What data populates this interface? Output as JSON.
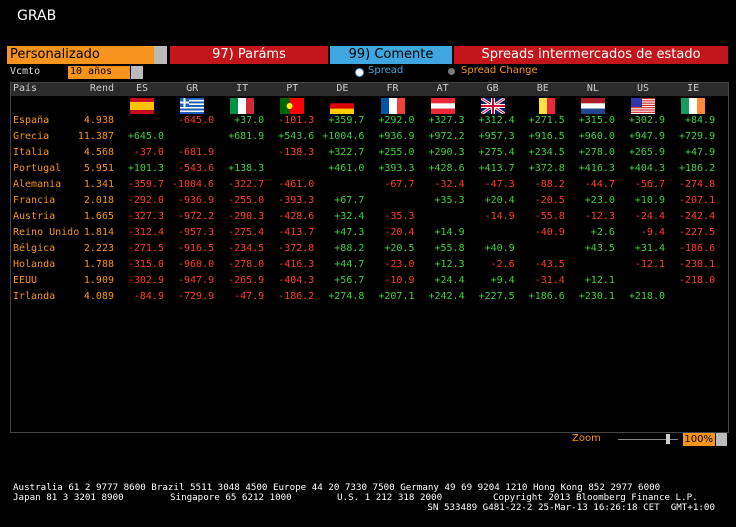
{
  "header": {
    "title": "GRAB"
  },
  "toolbar": {
    "preset": "Personalizado",
    "params": "97) Paráms",
    "comment": "99) Comente",
    "heading": "Spreads intermercados de estado"
  },
  "options": {
    "maturity_label": "Vcmto",
    "maturity": "10 años",
    "spread": "Spread",
    "spread_change": "Spread Change"
  },
  "table": {
    "columns": [
      "País",
      "Rend",
      "ES",
      "GR",
      "IT",
      "PT",
      "DE",
      "FR",
      "AT",
      "GB",
      "BE",
      "NL",
      "US",
      "IE"
    ],
    "rows": [
      [
        "España",
        "4.938",
        null,
        "-645.0",
        "+37.0",
        "-101.3",
        "+359.7",
        "+292.0",
        "+327.3",
        "+312.4",
        "+271.5",
        "+315.0",
        "+302.9",
        "+84.9"
      ],
      [
        "Grecia",
        "11.387",
        "+645.0",
        null,
        "+681.9",
        "+543.6",
        "+1004.6",
        "+936.9",
        "+972.2",
        "+957.3",
        "+916.5",
        "+960.0",
        "+947.9",
        "+729.9"
      ],
      [
        "Italia",
        "4.568",
        "-37.0",
        "-681.9",
        null,
        "-138.3",
        "+322.7",
        "+255.0",
        "+290.3",
        "+275.4",
        "+234.5",
        "+278.0",
        "+265.9",
        "+47.9"
      ],
      [
        "Portugal",
        "5.951",
        "+101.3",
        "-543.6",
        "+138.3",
        null,
        "+461.0",
        "+393.3",
        "+428.6",
        "+413.7",
        "+372.8",
        "+416.3",
        "+404.3",
        "+186.2"
      ],
      [
        "Alemania",
        "1.341",
        "-359.7",
        "-1004.6",
        "-322.7",
        "-461.0",
        null,
        "-67.7",
        "-32.4",
        "-47.3",
        "-88.2",
        "-44.7",
        "-56.7",
        "-274.8"
      ],
      [
        "Francia",
        "2.018",
        "-292.0",
        "-936.9",
        "-255.0",
        "-393.3",
        "+67.7",
        null,
        "+35.3",
        "+20.4",
        "-20.5",
        "+23.0",
        "+10.9",
        "-207.1"
      ],
      [
        "Austria",
        "1.665",
        "-327.3",
        "-972.2",
        "-290.3",
        "-428.6",
        "+32.4",
        "-35.3",
        null,
        "-14.9",
        "-55.8",
        "-12.3",
        "-24.4",
        "-242.4"
      ],
      [
        "Reino Unido",
        "1.814",
        "-312.4",
        "-957.3",
        "-275.4",
        "-413.7",
        "+47.3",
        "-20.4",
        "+14.9",
        null,
        "-40.9",
        "+2.6",
        "-9.4",
        "-227.5"
      ],
      [
        "Bélgica",
        "2.223",
        "-271.5",
        "-916.5",
        "-234.5",
        "-372.8",
        "+88.2",
        "+20.5",
        "+55.8",
        "+40.9",
        null,
        "+43.5",
        "+31.4",
        "-186.6"
      ],
      [
        "Holanda",
        "1.788",
        "-315.0",
        "-960.0",
        "-278.0",
        "-416.3",
        "+44.7",
        "-23.0",
        "+12.3",
        "-2.6",
        "-43.5",
        null,
        "-12.1",
        "-230.1"
      ],
      [
        "EEUU",
        "1.909",
        "-302.9",
        "-947.9",
        "-265.9",
        "-404.3",
        "+56.7",
        "-10.9",
        "+24.4",
        "+9.4",
        "-31.4",
        "+12.1",
        null,
        "-218.0"
      ],
      [
        "Irlanda",
        "4.089",
        "-84.9",
        "-729.9",
        "-47.9",
        "-186.2",
        "+274.8",
        "+207.1",
        "+242.4",
        "+227.5",
        "+186.6",
        "+230.1",
        "+218.0",
        null
      ]
    ]
  },
  "zoom": {
    "label": "Zoom",
    "value": "100%"
  },
  "footer": {
    "line1": "Australia 61 2 9777 8600 Brazil 5511 3048 4500 Europe 44 20 7330 7500 Germany 49 69 9204 1210 Hong Kong 852 2977 6000",
    "line2": [
      "Japan 81 3 3201 8900",
      "Singapore 65 6212 1000",
      "U.S. 1 212 318 2000",
      "Copyright 2013 Bloomberg Finance L.P."
    ],
    "line3": "SN 533489 G481-22-2 25-Mar-13 16:26:18 CET  GMT+1:00"
  }
}
